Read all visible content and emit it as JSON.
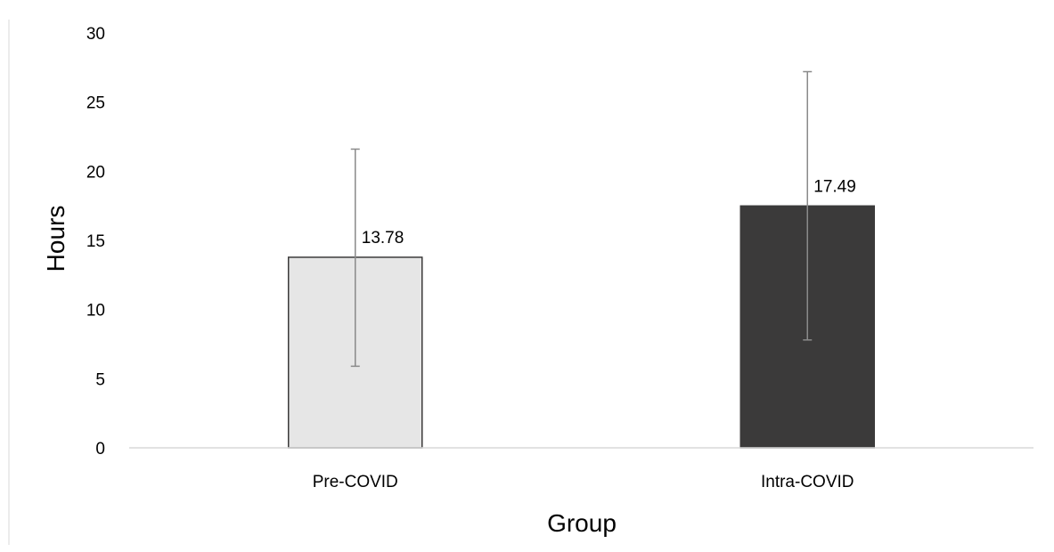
{
  "chart_data": {
    "type": "bar",
    "title": "",
    "xlabel": "Group",
    "ylabel": "Hours",
    "categories": [
      "Pre-COVID",
      "Intra-COVID"
    ],
    "values": [
      13.78,
      17.49
    ],
    "value_labels": [
      "13.78",
      "17.49"
    ],
    "error_bars": [
      {
        "lower": 5.9,
        "upper": 21.6
      },
      {
        "lower": 7.8,
        "upper": 27.2
      }
    ],
    "bar_colors": [
      "#e6e6e6",
      "#3b3a3a"
    ],
    "bar_outline": "#3b3a3a",
    "error_bar_color": "#8a8a8a",
    "ylim": [
      0,
      30
    ],
    "yticks": [
      "0",
      "5",
      "10",
      "15",
      "20",
      "25",
      "30"
    ],
    "grid": false,
    "legend": "none"
  }
}
